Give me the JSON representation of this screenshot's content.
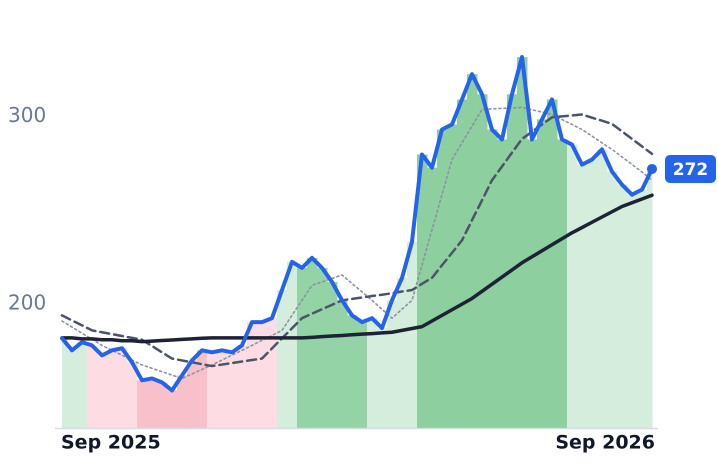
{
  "chart_data": {
    "type": "line",
    "ylim": [
      134,
      362
    ],
    "yticks": [
      200,
      300
    ],
    "xlim": [
      0,
      59
    ],
    "xticks": [
      {
        "value": 0,
        "label": "Sep 2025"
      },
      {
        "value": 59,
        "label": "Sep 2026"
      }
    ],
    "bar_colors": [
      "#d4eddc",
      "#d4eddc",
      "#d4eddc",
      "#fddde3",
      "#fddde3",
      "#fddde3",
      "#fddde3",
      "#fddde3",
      "#f8c0ca",
      "#f8c0ca",
      "#f8c0ca",
      "#f8c0ca",
      "#f8c0ca",
      "#f8c0ca",
      "#f8c0ca",
      "#fddde3",
      "#fddde3",
      "#fddde3",
      "#fddde3",
      "#fddde3",
      "#fddde3",
      "#fddde3",
      "#d4eddc",
      "#d4eddc",
      "#93d3a6",
      "#93d3a6",
      "#93d3a6",
      "#93d3a6",
      "#93d3a6",
      "#93d3a6",
      "#93d3a6",
      "#d4eddc",
      "#d4eddc",
      "#d4eddc",
      "#d4eddc",
      "#d4eddc",
      "#8dcf9f",
      "#8dcf9f",
      "#8dcf9f",
      "#8dcf9f",
      "#8dcf9f",
      "#8dcf9f",
      "#8dcf9f",
      "#8dcf9f",
      "#8dcf9f",
      "#8dcf9f",
      "#8dcf9f",
      "#8dcf9f",
      "#8dcf9f",
      "#8dcf9f",
      "#8dcf9f",
      "#d4eddc",
      "#d4eddc",
      "#d4eddc",
      "#d4eddc",
      "#d4eddc",
      "#d4eddc",
      "#d4eddc",
      "#d4eddc",
      "#d4eddc"
    ],
    "series": [
      {
        "color": "#2563eb",
        "values": [
          181.8,
          175.4,
          179.7,
          178,
          172.7,
          175.4,
          176.5,
          169,
          159.4,
          160.4,
          158.3,
          154,
          162,
          170,
          175.4,
          174.3,
          175.4,
          174.3,
          178,
          190.4,
          190.4,
          192.5,
          207.5,
          222.5,
          219.3,
          224.6,
          219.3,
          211.8,
          202.1,
          194,
          190.4,
          192.5,
          187.2,
          202.1,
          213.9,
          233.2,
          279.7,
          272.7,
          293,
          295.7,
          309,
          322.5,
          311.8,
          293,
          287.7,
          311.8,
          331.6,
          287.7,
          298.4,
          309,
          287.7,
          285,
          274.3,
          277,
          282.4,
          270.6,
          263.6,
          258.3,
          261,
          272
        ]
      },
      {
        "color": "#1e2235",
        "values": [
          182,
          182,
          181.5,
          181.5,
          181,
          181,
          180.5,
          180.5,
          180,
          180.3,
          180.6,
          180.9,
          181.2,
          181.5,
          181.8,
          182,
          182,
          182,
          182,
          182,
          182,
          182,
          182,
          182,
          182,
          182.3,
          182.7,
          183,
          183.3,
          183.7,
          184,
          184.3,
          184.7,
          185,
          186,
          187,
          188,
          191,
          194,
          197,
          200,
          203,
          206.8,
          210.6,
          214.4,
          218.2,
          222,
          225.2,
          228.4,
          231.6,
          234.8,
          238,
          240.8,
          243.6,
          246.4,
          249.2,
          252,
          254,
          256,
          258
        ]
      },
      {
        "color": "#4b5567",
        "values": [
          194,
          191.3,
          188.7,
          186,
          185,
          184,
          183,
          182,
          181,
          177.7,
          174.3,
          171,
          170,
          169,
          168,
          167,
          167.8,
          168.6,
          169.4,
          170.2,
          171,
          176.4,
          181.8,
          187.1,
          192.5,
          194.9,
          197.3,
          199.6,
          202,
          202.8,
          203.5,
          204.3,
          205,
          205.8,
          206.7,
          207.5,
          210.8,
          214,
          220.7,
          227.3,
          234,
          244.7,
          255.3,
          266,
          273.3,
          280.7,
          288,
          291.8,
          295.7,
          299.5,
          300,
          300.5,
          301,
          299.3,
          297.7,
          296,
          292,
          288,
          284,
          280
        ]
      },
      {
        "color": "#8a93a3",
        "values": [
          191,
          187.8,
          184.5,
          181.3,
          178,
          175.4,
          172.8,
          170.2,
          167.6,
          165.8,
          164,
          162.2,
          160.4,
          162.8,
          165.2,
          167.6,
          170.2,
          172.8,
          175.4,
          178,
          180.7,
          183.3,
          186,
          194,
          202,
          210,
          211.8,
          213.7,
          215.5,
          211,
          206.5,
          202,
          197.3,
          192.5,
          197.3,
          202,
          220.8,
          239.6,
          258.3,
          277,
          285.9,
          294.8,
          303.7,
          304,
          304.3,
          304.5,
          304.8,
          303.5,
          302.3,
          301,
          298.3,
          295.7,
          293,
          289.5,
          285.9,
          282.4,
          278.4,
          274.4,
          270.4,
          266
        ]
      }
    ]
  }
}
